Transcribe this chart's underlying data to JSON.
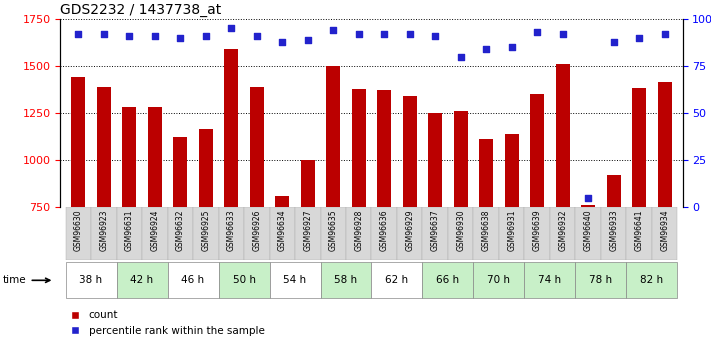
{
  "title": "GDS2232 / 1437738_at",
  "samples": [
    "GSM96630",
    "GSM96923",
    "GSM96631",
    "GSM96924",
    "GSM96632",
    "GSM96925",
    "GSM96633",
    "GSM96926",
    "GSM96634",
    "GSM96927",
    "GSM96635",
    "GSM96928",
    "GSM96636",
    "GSM96929",
    "GSM96637",
    "GSM96930",
    "GSM96638",
    "GSM96931",
    "GSM96639",
    "GSM96932",
    "GSM96640",
    "GSM96933",
    "GSM96641",
    "GSM96934"
  ],
  "counts": [
    1440,
    1390,
    1280,
    1280,
    1120,
    1165,
    1590,
    1390,
    810,
    1000,
    1500,
    1380,
    1370,
    1340,
    1250,
    1260,
    1110,
    1140,
    1350,
    1510,
    760,
    920,
    1385,
    1415
  ],
  "percentiles": [
    92,
    92,
    91,
    91,
    90,
    91,
    95,
    91,
    88,
    89,
    94,
    92,
    92,
    92,
    91,
    80,
    84,
    85,
    93,
    92,
    5,
    88,
    90,
    92
  ],
  "time_groups": [
    "38 h",
    "38 h",
    "42 h",
    "42 h",
    "46 h",
    "46 h",
    "50 h",
    "50 h",
    "54 h",
    "54 h",
    "58 h",
    "58 h",
    "62 h",
    "62 h",
    "66 h",
    "66 h",
    "70 h",
    "70 h",
    "74 h",
    "74 h",
    "78 h",
    "78 h",
    "82 h",
    "82 h"
  ],
  "group_colors": {
    "38 h": "#ffffff",
    "42 h": "#c8f0c8",
    "46 h": "#ffffff",
    "50 h": "#c8f0c8",
    "54 h": "#ffffff",
    "58 h": "#c8f0c8",
    "62 h": "#ffffff",
    "66 h": "#c8f0c8",
    "70 h": "#c8f0c8",
    "74 h": "#c8f0c8",
    "78 h": "#c8f0c8",
    "82 h": "#c8f0c8"
  },
  "bar_color": "#bb0000",
  "dot_color": "#2222cc",
  "ylim_left": [
    750,
    1750
  ],
  "ylim_right": [
    0,
    100
  ],
  "yticks_left": [
    750,
    1000,
    1250,
    1500,
    1750
  ],
  "yticks_right": [
    0,
    25,
    50,
    75,
    100
  ]
}
